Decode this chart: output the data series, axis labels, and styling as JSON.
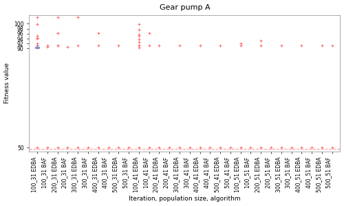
{
  "title": "Gear pump A",
  "xlabel": "Iteration, population size, algorithm",
  "ylabel": "Fitness value",
  "dashed_line_y": 49.5,
  "ylim": [
    48.5,
    103.5
  ],
  "yticks": [
    50,
    90,
    92,
    94,
    96,
    98,
    100
  ],
  "categories": [
    "100_31 EDBA",
    "100_31 BAF",
    "200_31 EDBA",
    "200_31 BAF",
    "300_31 EDBA",
    "300_31 BAF",
    "400_31 EDBA",
    "400_31 BAF",
    "500_31 EDBA",
    "500_31 BAF",
    "100_41 EDBA",
    "100_41 BAF",
    "200_41 EDBA",
    "200_41 BAF",
    "300_41 EDBA",
    "300_41 BAF",
    "400_41 EDBA",
    "400_41 BAF",
    "500_41 EDBA",
    "500_41 BAF",
    "100_51 EDBA",
    "100_51 BAF",
    "200_51 EDBA",
    "200_51 BAF",
    "300_51 EDBA",
    "300_51 BAF",
    "400_51 EDBA",
    "400_51 BAF",
    "500_51 EDBA",
    "500_51 BAF"
  ],
  "scatter_data": {
    "100_31 EDBA": [
      102.5,
      99.8,
      95.2,
      94.3,
      94.1,
      92.2,
      91.3,
      91.1,
      90.5,
      50.2
    ],
    "100_31 BAF": [
      91.1,
      90.7,
      50.2
    ],
    "200_31 EDBA": [
      102.5,
      96.3,
      96.3,
      91.1,
      91.1,
      50.2
    ],
    "200_31 BAF": [
      90.6,
      50.2
    ],
    "300_31 EDBA": [
      102.5,
      91.1,
      50.2
    ],
    "300_31 BAF": [
      50.2
    ],
    "400_31 EDBA": [
      96.3,
      91.1,
      50.2
    ],
    "400_31 BAF": [
      50.2
    ],
    "500_31 EDBA": [
      91.1,
      50.2
    ],
    "500_31 BAF": [
      50.2
    ],
    "100_41 EDBA": [
      99.8,
      97.6,
      95.8,
      95.2,
      93.8,
      92.6,
      91.1,
      91.1,
      90.5,
      50.2
    ],
    "100_41 BAF": [
      96.3,
      91.1,
      50.2
    ],
    "200_41 EDBA": [
      91.1,
      50.2
    ],
    "200_41 BAF": [
      50.2
    ],
    "300_41 EDBA": [
      91.1,
      50.2
    ],
    "300_41 BAF": [
      50.2
    ],
    "400_41 EDBA": [
      91.1,
      50.2
    ],
    "400_41 BAF": [
      50.2
    ],
    "500_41 EDBA": [
      91.1,
      50.2
    ],
    "500_41 BAF": [
      50.2
    ],
    "100_51 EDBA": [
      92.2,
      91.1,
      50.2
    ],
    "100_51 BAF": [
      50.2
    ],
    "200_51 EDBA": [
      93.1,
      91.1,
      50.2
    ],
    "200_51 BAF": [
      50.2
    ],
    "300_51 EDBA": [
      91.1,
      50.2
    ],
    "300_51 BAF": [
      50.2
    ],
    "400_51 EDBA": [
      91.1,
      50.2
    ],
    "400_51 BAF": [
      50.2
    ],
    "500_51 EDBA": [
      91.1,
      50.2
    ],
    "500_51 BAF": [
      91.1,
      50.2
    ]
  },
  "boxplot_data": [
    90.0,
    90.1,
    90.2,
    90.3,
    90.4,
    90.6,
    90.7,
    90.8,
    91.1
  ],
  "scatter_color": "#FF6B6B",
  "box_facecolor": "#CCCCFF",
  "box_edgecolor": "#8888CC",
  "box_median_color": "#8888CC",
  "dashed_color": "#FF9999",
  "background_color": "#FFFFFF",
  "title_fontsize": 8,
  "label_fontsize": 6.5,
  "tick_fontsize": 5.5
}
